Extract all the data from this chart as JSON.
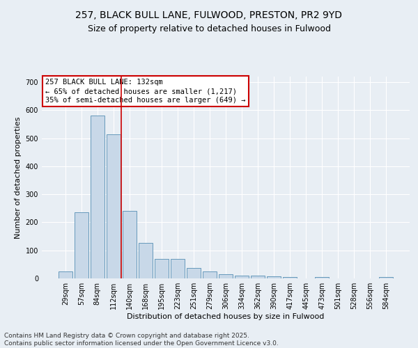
{
  "title_line1": "257, BLACK BULL LANE, FULWOOD, PRESTON, PR2 9YD",
  "title_line2": "Size of property relative to detached houses in Fulwood",
  "xlabel": "Distribution of detached houses by size in Fulwood",
  "ylabel": "Number of detached properties",
  "categories": [
    "29sqm",
    "57sqm",
    "84sqm",
    "112sqm",
    "140sqm",
    "168sqm",
    "195sqm",
    "223sqm",
    "251sqm",
    "279sqm",
    "306sqm",
    "334sqm",
    "362sqm",
    "390sqm",
    "417sqm",
    "445sqm",
    "473sqm",
    "501sqm",
    "528sqm",
    "556sqm",
    "584sqm"
  ],
  "values": [
    25,
    235,
    580,
    515,
    242,
    127,
    70,
    70,
    38,
    25,
    15,
    10,
    10,
    8,
    5,
    0,
    5,
    0,
    0,
    0,
    5
  ],
  "bar_color": "#c8d8e8",
  "bar_edge_color": "#6699bb",
  "vline_x_index": 3.5,
  "vline_color": "#cc0000",
  "annotation_text": "257 BLACK BULL LANE: 132sqm\n← 65% of detached houses are smaller (1,217)\n35% of semi-detached houses are larger (649) →",
  "annotation_box_color": "#cc0000",
  "ylim": [
    0,
    720
  ],
  "yticks": [
    0,
    100,
    200,
    300,
    400,
    500,
    600,
    700
  ],
  "background_color": "#e8eef4",
  "footer_line1": "Contains HM Land Registry data © Crown copyright and database right 2025.",
  "footer_line2": "Contains public sector information licensed under the Open Government Licence v3.0.",
  "title_fontsize": 10,
  "subtitle_fontsize": 9,
  "axis_label_fontsize": 8,
  "tick_fontsize": 7,
  "annotation_fontsize": 7.5,
  "footer_fontsize": 6.5
}
